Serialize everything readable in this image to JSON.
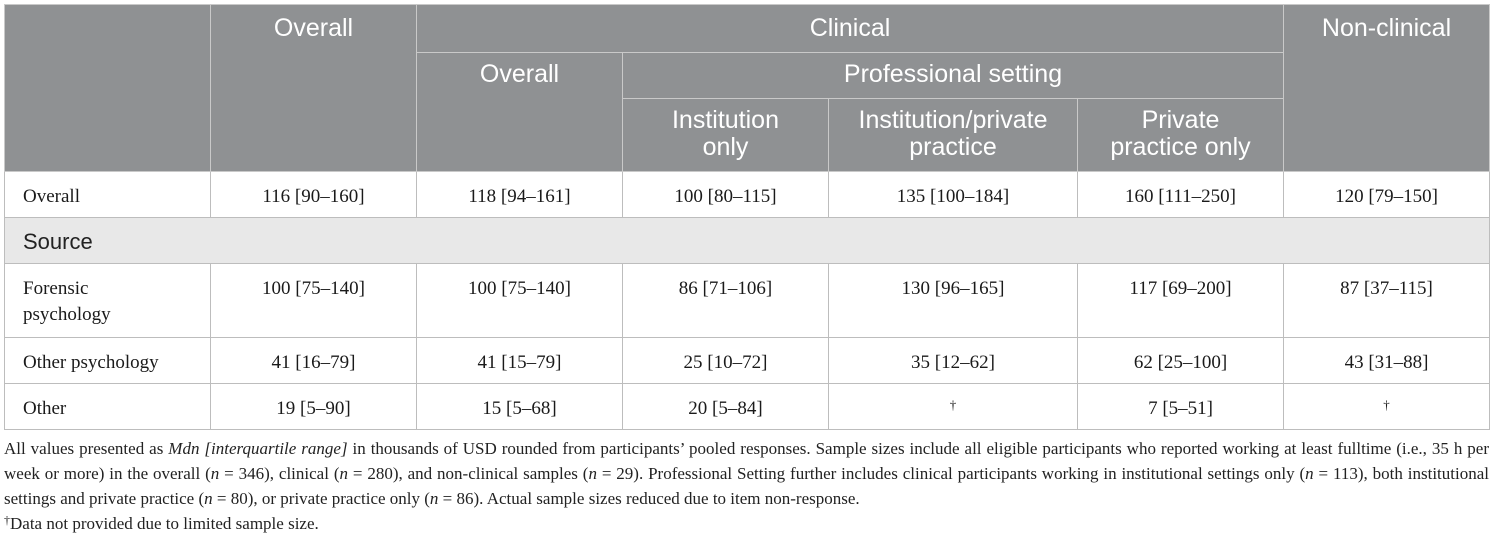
{
  "table": {
    "header": {
      "row1": {
        "overall": "Overall",
        "clinical": "Clinical",
        "non_clinical": "Non-clinical"
      },
      "row2": {
        "clinical_overall": "Overall",
        "professional_setting": "Professional setting"
      },
      "row3": {
        "institution_only_1": "Institution",
        "institution_only_2": "only",
        "inst_private_1": "Institution/private",
        "inst_private_2": "practice",
        "private_only_1": "Private",
        "private_only_2": "practice only"
      }
    },
    "rows": [
      {
        "label": "Overall",
        "cells": [
          "116 [90–160]",
          "118 [94–161]",
          "100 [80–115]",
          "135 [100–184]",
          "160 [111–250]",
          "120 [79–150]"
        ]
      }
    ],
    "section_label": "Source",
    "source_rows": [
      {
        "label_line1": "Forensic",
        "label_line2": "psychology",
        "cells": [
          "100 [75–140]",
          "100 [75–140]",
          "86 [71–106]",
          "130 [96–165]",
          "117 [69–200]",
          "87 [37–115]"
        ]
      },
      {
        "label": "Other psychology",
        "cells": [
          "41 [16–79]",
          "41 [15–79]",
          "25 [10–72]",
          "35 [12–62]",
          "62 [25–100]",
          "43 [31–88]"
        ]
      },
      {
        "label": "Other",
        "cells": [
          "19 [5–90]",
          "15 [5–68]",
          "20 [5–84]",
          "†",
          "7 [5–51]",
          "†"
        ]
      }
    ]
  },
  "notes": {
    "p1_a": "All values presented as ",
    "p1_italic": "Mdn [interquartile range]",
    "p1_b": " in thousands of USD rounded from participants’ pooled responses. Sample sizes include all eligible participants who reported working at least fulltime (i.e., 35 h per week or more) in the overall (",
    "n_sym": "n",
    "n346": " = 346), clinical (",
    "n280": " = 280), and non-clinical samples (",
    "n29": " = 29). Professional Setting further includes clinical participants working in institutional settings only (",
    "n113": " = 113), both institutional settings and private practice (",
    "n80": " = 80), or private practice only (",
    "n86": " = 86). Actual sample sizes reduced due to item non-response.",
    "dagger": "†",
    "p2": "Data not provided due to limited sample size."
  }
}
